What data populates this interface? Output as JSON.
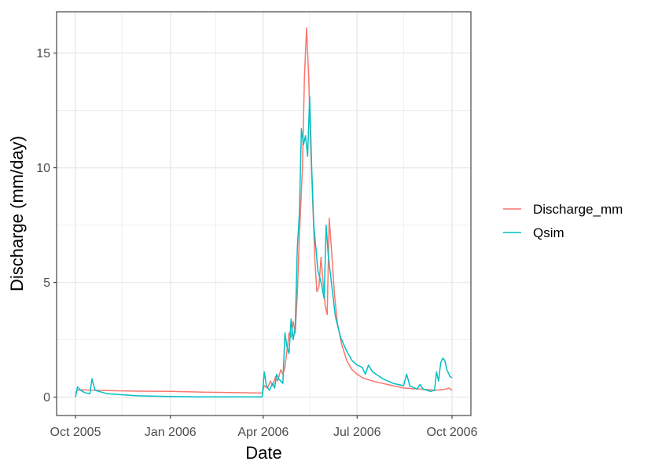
{
  "chart_data": {
    "type": "line",
    "title": "",
    "xlabel": "Date",
    "ylabel": "Discharge (mm/day)",
    "x_range": [
      "2005-10-01",
      "2006-10-01"
    ],
    "ylim": [
      -0.8,
      16.8
    ],
    "x_ticks": [
      {
        "date": "2005-10-01",
        "label": "Oct 2005"
      },
      {
        "date": "2006-01-01",
        "label": "Jan 2006"
      },
      {
        "date": "2006-04-01",
        "label": "Apr 2006"
      },
      {
        "date": "2006-07-01",
        "label": "Jul 2006"
      },
      {
        "date": "2006-10-01",
        "label": "Oct 2006"
      }
    ],
    "x_minor_ticks": [
      "2005-11-15",
      "2006-02-14",
      "2006-05-16",
      "2006-08-15"
    ],
    "y_ticks": [
      0,
      5,
      10,
      15
    ],
    "y_minor_ticks": [
      2.5,
      7.5,
      12.5
    ],
    "grid": true,
    "legend_position": "right",
    "series": [
      {
        "name": "Discharge_mm",
        "color": "#F8766D",
        "points": [
          [
            "2005-10-01",
            0.2
          ],
          [
            "2005-10-03",
            0.3
          ],
          [
            "2005-10-08",
            0.32
          ],
          [
            "2005-10-20",
            0.3
          ],
          [
            "2005-11-10",
            0.28
          ],
          [
            "2005-12-01",
            0.26
          ],
          [
            "2006-01-01",
            0.25
          ],
          [
            "2006-02-01",
            0.22
          ],
          [
            "2006-03-01",
            0.2
          ],
          [
            "2006-03-31",
            0.18
          ],
          [
            "2006-04-02",
            0.5
          ],
          [
            "2006-04-05",
            0.4
          ],
          [
            "2006-04-08",
            0.7
          ],
          [
            "2006-04-10",
            0.5
          ],
          [
            "2006-04-13",
            0.9
          ],
          [
            "2006-04-15",
            0.7
          ],
          [
            "2006-04-18",
            1.2
          ],
          [
            "2006-04-20",
            1.0
          ],
          [
            "2006-04-22",
            1.3
          ],
          [
            "2006-04-24",
            2.0
          ],
          [
            "2006-04-26",
            2.8
          ],
          [
            "2006-04-28",
            2.6
          ],
          [
            "2006-04-30",
            3.3
          ],
          [
            "2006-05-02",
            2.8
          ],
          [
            "2006-05-04",
            4.5
          ],
          [
            "2006-05-06",
            7.0
          ],
          [
            "2006-05-09",
            10.0
          ],
          [
            "2006-05-11",
            14.0
          ],
          [
            "2006-05-13",
            16.1
          ],
          [
            "2006-05-15",
            14.0
          ],
          [
            "2006-05-17",
            11.0
          ],
          [
            "2006-05-19",
            8.5
          ],
          [
            "2006-05-21",
            6.0
          ],
          [
            "2006-05-23",
            4.6
          ],
          [
            "2006-05-25",
            4.8
          ],
          [
            "2006-05-27",
            6.1
          ],
          [
            "2006-05-29",
            5.0
          ],
          [
            "2006-05-31",
            4.0
          ],
          [
            "2006-06-02",
            3.6
          ],
          [
            "2006-06-04",
            7.8
          ],
          [
            "2006-06-06",
            6.5
          ],
          [
            "2006-06-09",
            4.5
          ],
          [
            "2006-06-12",
            3.2
          ],
          [
            "2006-06-16",
            2.3
          ],
          [
            "2006-06-21",
            1.6
          ],
          [
            "2006-06-26",
            1.2
          ],
          [
            "2006-07-01",
            1.0
          ],
          [
            "2006-07-06",
            0.85
          ],
          [
            "2006-07-16",
            0.7
          ],
          [
            "2006-07-31",
            0.55
          ],
          [
            "2006-08-15",
            0.4
          ],
          [
            "2006-08-31",
            0.35
          ],
          [
            "2006-09-15",
            0.3
          ],
          [
            "2006-09-25",
            0.35
          ],
          [
            "2006-09-28",
            0.4
          ],
          [
            "2006-10-01",
            0.3
          ]
        ]
      },
      {
        "name": "Qsim",
        "color": "#00BFC4",
        "points": [
          [
            "2005-10-01",
            0.0
          ],
          [
            "2005-10-03",
            0.45
          ],
          [
            "2005-10-06",
            0.3
          ],
          [
            "2005-10-10",
            0.2
          ],
          [
            "2005-10-15",
            0.15
          ],
          [
            "2005-10-17",
            0.8
          ],
          [
            "2005-10-20",
            0.3
          ],
          [
            "2005-11-01",
            0.15
          ],
          [
            "2005-11-30",
            0.06
          ],
          [
            "2005-12-31",
            0.03
          ],
          [
            "2006-02-01",
            0.01
          ],
          [
            "2006-03-31",
            0.01
          ],
          [
            "2006-04-02",
            1.1
          ],
          [
            "2006-04-04",
            0.5
          ],
          [
            "2006-04-07",
            0.3
          ],
          [
            "2006-04-10",
            0.6
          ],
          [
            "2006-04-12",
            0.4
          ],
          [
            "2006-04-14",
            1.0
          ],
          [
            "2006-04-16",
            0.8
          ],
          [
            "2006-04-18",
            0.7
          ],
          [
            "2006-04-20",
            0.6
          ],
          [
            "2006-04-22",
            2.8
          ],
          [
            "2006-04-24",
            2.2
          ],
          [
            "2006-04-26",
            1.9
          ],
          [
            "2006-04-28",
            3.4
          ],
          [
            "2006-04-30",
            2.5
          ],
          [
            "2006-05-02",
            3.0
          ],
          [
            "2006-05-04",
            6.5
          ],
          [
            "2006-05-06",
            8.0
          ],
          [
            "2006-05-08",
            11.7
          ],
          [
            "2006-05-10",
            11.0
          ],
          [
            "2006-05-12",
            11.4
          ],
          [
            "2006-05-14",
            10.5
          ],
          [
            "2006-05-16",
            13.1
          ],
          [
            "2006-05-18",
            10.0
          ],
          [
            "2006-05-20",
            7.5
          ],
          [
            "2006-05-22",
            6.5
          ],
          [
            "2006-05-24",
            5.5
          ],
          [
            "2006-05-26",
            5.2
          ],
          [
            "2006-05-28",
            4.8
          ],
          [
            "2006-05-30",
            4.3
          ],
          [
            "2006-06-01",
            7.5
          ],
          [
            "2006-06-03",
            6.2
          ],
          [
            "2006-06-06",
            5.0
          ],
          [
            "2006-06-10",
            3.5
          ],
          [
            "2006-06-15",
            2.6
          ],
          [
            "2006-06-21",
            2.0
          ],
          [
            "2006-06-26",
            1.6
          ],
          [
            "2006-07-01",
            1.4
          ],
          [
            "2006-07-06",
            1.3
          ],
          [
            "2006-07-09",
            1.0
          ],
          [
            "2006-07-12",
            1.4
          ],
          [
            "2006-07-16",
            1.1
          ],
          [
            "2006-07-26",
            0.8
          ],
          [
            "2006-08-05",
            0.6
          ],
          [
            "2006-08-15",
            0.5
          ],
          [
            "2006-08-18",
            1.0
          ],
          [
            "2006-08-21",
            0.5
          ],
          [
            "2006-08-28",
            0.35
          ],
          [
            "2006-08-31",
            0.55
          ],
          [
            "2006-09-03",
            0.35
          ],
          [
            "2006-09-10",
            0.25
          ],
          [
            "2006-09-14",
            0.3
          ],
          [
            "2006-09-16",
            1.1
          ],
          [
            "2006-09-18",
            0.7
          ],
          [
            "2006-09-20",
            1.5
          ],
          [
            "2006-09-22",
            1.7
          ],
          [
            "2006-09-24",
            1.6
          ],
          [
            "2006-09-26",
            1.2
          ],
          [
            "2006-09-29",
            0.9
          ],
          [
            "2006-10-01",
            0.85
          ]
        ]
      }
    ]
  }
}
